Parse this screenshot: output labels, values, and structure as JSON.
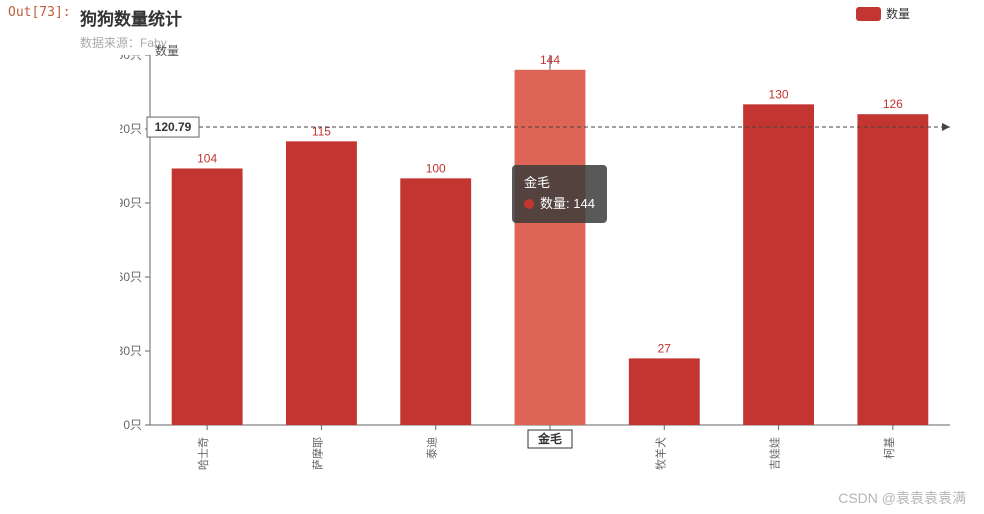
{
  "out_label": "Out[73]:",
  "title": "狗狗数量统计",
  "subtitle_prefix": "数据来源：Fa",
  "subtitle_overlay": "数量",
  "subtitle_suffix": "by",
  "legend": {
    "label": "数量",
    "color": "#c23531"
  },
  "chart": {
    "type": "bar",
    "categories": [
      "哈士奇",
      "萨摩耶",
      "泰迪",
      "金毛",
      "牧羊犬",
      "吉娃娃",
      "柯基"
    ],
    "values": [
      104,
      115,
      100,
      144,
      27,
      130,
      126
    ],
    "bar_color": "#c23531",
    "bar_color_highlight": "#de6555",
    "highlight_index": 3,
    "label_color": "#c23531",
    "label_fontsize": 12,
    "ylim": [
      0,
      150
    ],
    "ytick_step": 30,
    "ytick_suffix": "只",
    "axis_color": "#666666",
    "background": "#ffffff",
    "bar_width_ratio": 0.62,
    "markline": {
      "value": 120.79,
      "label": "120.79",
      "color": "#444444"
    },
    "tooltip": {
      "category": "金毛",
      "series": "数量",
      "value": 144,
      "dot_color": "#c23531"
    }
  },
  "watermark": "CSDN @袁袁袁袁满"
}
